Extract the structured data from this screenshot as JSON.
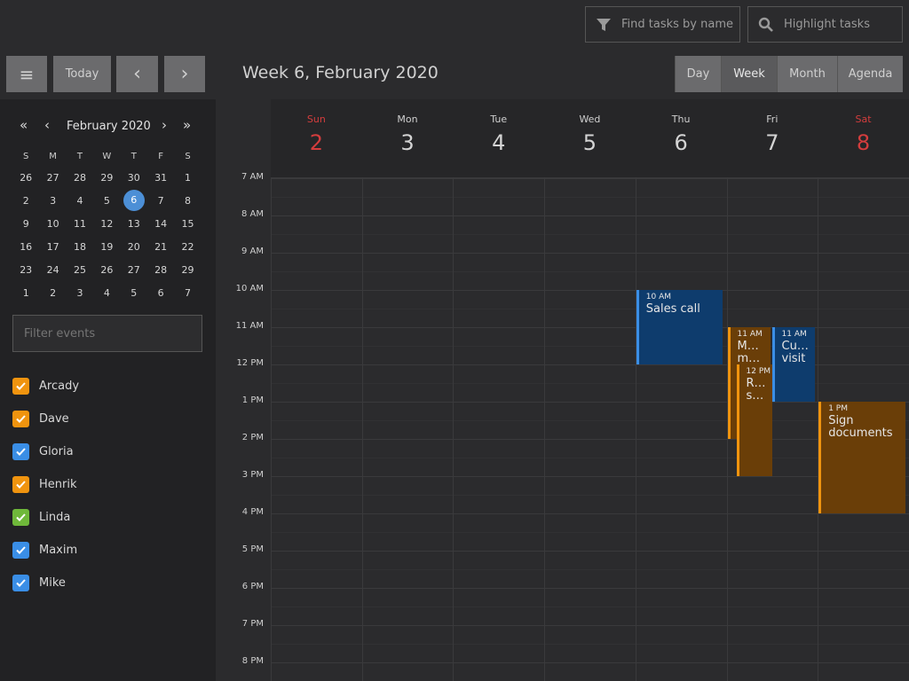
{
  "toolbar": {
    "find_placeholder": "Find tasks by name",
    "highlight_placeholder": "Highlight tasks",
    "today_label": "Today",
    "prev_icon": "‹",
    "next_icon": "›",
    "menu_icon": "≡",
    "title": "Week 6, February 2020",
    "views": [
      {
        "label": "Day",
        "active": false
      },
      {
        "label": "Week",
        "active": true
      },
      {
        "label": "Month",
        "active": false
      },
      {
        "label": "Agenda",
        "active": false
      }
    ]
  },
  "mini_calendar": {
    "title": "February 2020",
    "prev_year": "«",
    "prev_month": "‹",
    "next_month": "›",
    "next_year": "»",
    "weekdays": [
      "S",
      "M",
      "T",
      "W",
      "T",
      "F",
      "S"
    ],
    "weeks": [
      [
        "26",
        "27",
        "28",
        "29",
        "30",
        "31",
        "1"
      ],
      [
        "2",
        "3",
        "4",
        "5",
        "6",
        "7",
        "8"
      ],
      [
        "9",
        "10",
        "11",
        "12",
        "13",
        "14",
        "15"
      ],
      [
        "16",
        "17",
        "18",
        "19",
        "20",
        "21",
        "22"
      ],
      [
        "23",
        "24",
        "25",
        "26",
        "27",
        "28",
        "29"
      ],
      [
        "1",
        "2",
        "3",
        "4",
        "5",
        "6",
        "7"
      ]
    ],
    "selected": "6"
  },
  "filter_placeholder": "Filter events",
  "resources": [
    {
      "name": "Arcady",
      "color": "#f0940f"
    },
    {
      "name": "Dave",
      "color": "#f0940f"
    },
    {
      "name": "Gloria",
      "color": "#3a8ee6"
    },
    {
      "name": "Henrik",
      "color": "#f0940f"
    },
    {
      "name": "Linda",
      "color": "#6fb83a"
    },
    {
      "name": "Maxim",
      "color": "#3a8ee6"
    },
    {
      "name": "Mike",
      "color": "#3a8ee6"
    }
  ],
  "days": [
    {
      "name": "Sun",
      "num": "2",
      "weekend": true
    },
    {
      "name": "Mon",
      "num": "3",
      "weekend": false
    },
    {
      "name": "Tue",
      "num": "4",
      "weekend": false
    },
    {
      "name": "Wed",
      "num": "5",
      "weekend": false
    },
    {
      "name": "Thu",
      "num": "6",
      "weekend": false
    },
    {
      "name": "Fri",
      "num": "7",
      "weekend": false
    },
    {
      "name": "Sat",
      "num": "8",
      "weekend": true
    }
  ],
  "hours": [
    "7 AM",
    "8 AM",
    "9 AM",
    "10 AM",
    "11 AM",
    "12 PM",
    "1 PM",
    "2 PM",
    "3 PM",
    "4 PM",
    "5 PM",
    "6 PM",
    "7 PM",
    "8 PM"
  ],
  "events": [
    {
      "day": 4,
      "start": 10,
      "end": 12,
      "time": "10 AM",
      "name": "Sales call",
      "color": "blue"
    },
    {
      "day": 5,
      "start": 11,
      "end": 14,
      "time": "11 AM",
      "name": "M… m…",
      "color": "orange",
      "slot": "a"
    },
    {
      "day": 5,
      "start": 12,
      "end": 15,
      "time": "12 PM",
      "name": "R… s…",
      "color": "orange",
      "slot": "b"
    },
    {
      "day": 5,
      "start": 11,
      "end": 13,
      "time": "11 AM",
      "name": "Cu… visit",
      "color": "blue",
      "slot": "c"
    },
    {
      "day": 6,
      "start": 13,
      "end": 16,
      "time": "1 PM",
      "name": "Sign documents",
      "color": "orange"
    }
  ],
  "colors": {
    "weekend": "#d43d3d",
    "selected_day": "#4c8fd6",
    "blue_event": "#0e3c6d",
    "orange_event": "#6a3e08"
  }
}
